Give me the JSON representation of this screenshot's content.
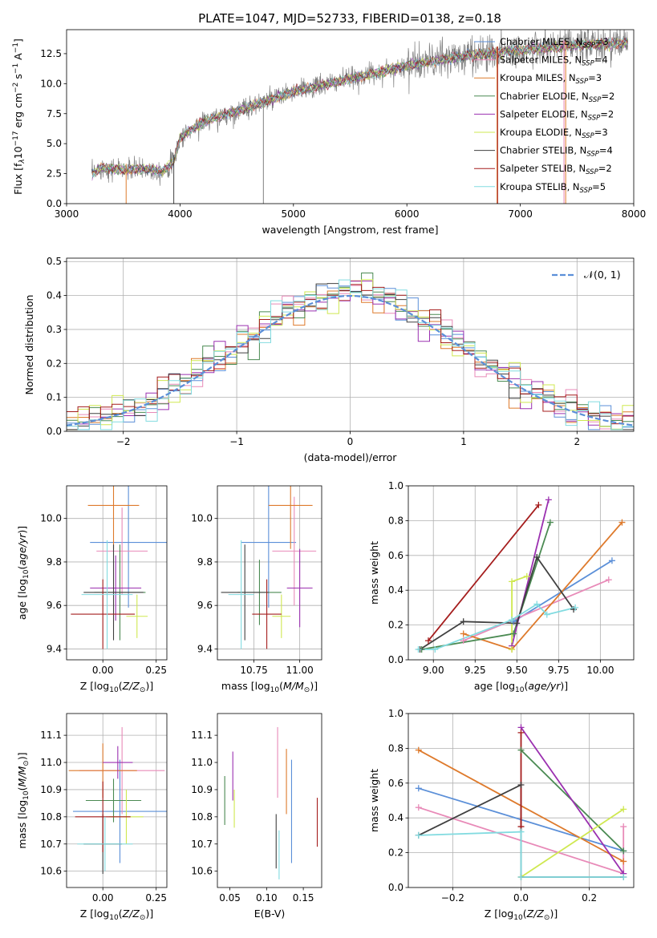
{
  "figure": {
    "title": "PLATE=1047, MJD=52733, FIBERID=0138, z=0.18"
  },
  "colors": {
    "data": "#808080",
    "chabrier_miles": "#5b8fd8",
    "salpeter_miles": "#e88ab8",
    "kroupa_miles": "#de7a2c",
    "chabrier_elodie": "#4a8a52",
    "salpeter_elodie": "#9b30b0",
    "kroupa_elodie": "#cfe850",
    "chabrier_stelib": "#404040",
    "salpeter_stelib": "#a51d1d",
    "kroupa_stelib": "#82dbe0",
    "normal_curve": "#5b8fd8"
  },
  "chart_data": [
    {
      "id": "spectrum",
      "type": "line",
      "xlabel": "wavelength [Angstrom, rest frame]",
      "ylabel": "Flux [f",
      "xlim": [
        3000,
        8000
      ],
      "ylim": [
        0,
        14.5
      ],
      "xticks": [
        "3000",
        "4000",
        "5000",
        "6000",
        "7000",
        "8000"
      ],
      "yticks": [
        "0.0",
        "2.5",
        "5.0",
        "7.5",
        "10.0",
        "12.5"
      ],
      "x_range_data": [
        3220,
        7950
      ],
      "shape_points": [
        [
          3220,
          2.4
        ],
        [
          3300,
          3.0
        ],
        [
          3500,
          2.8
        ],
        [
          3700,
          2.9
        ],
        [
          3850,
          2.7
        ],
        [
          3950,
          3.6
        ],
        [
          4000,
          5.5
        ],
        [
          4200,
          6.8
        ],
        [
          4500,
          7.7
        ],
        [
          5000,
          9.3
        ],
        [
          5500,
          10.4
        ],
        [
          6000,
          11.5
        ],
        [
          6500,
          12.3
        ],
        [
          7000,
          12.8
        ],
        [
          7500,
          13.2
        ],
        [
          7950,
          13.4
        ]
      ],
      "legend": [
        {
          "key": "chabrier_miles",
          "text": "Chabrier MILES, N",
          "sub": "SSP",
          "val": "=3"
        },
        {
          "key": "salpeter_miles",
          "text": "Salpeter MILES, N",
          "sub": "SSP",
          "val": "=4"
        },
        {
          "key": "kroupa_miles",
          "text": "Kroupa MILES, N",
          "sub": "SSP",
          "val": "=3"
        },
        {
          "key": "chabrier_elodie",
          "text": "Chabrier ELODIE, N",
          "sub": "SSP",
          "val": "=2"
        },
        {
          "key": "salpeter_elodie",
          "text": "Salpeter ELODIE, N",
          "sub": "SSP",
          "val": "=2"
        },
        {
          "key": "kroupa_elodie",
          "text": "Kroupa ELODIE, N",
          "sub": "SSP",
          "val": "=3"
        },
        {
          "key": "chabrier_stelib",
          "text": "Chabrier STELIB, N",
          "sub": "SSP",
          "val": "=4"
        },
        {
          "key": "salpeter_stelib",
          "text": "Salpeter STELIB, N",
          "sub": "SSP",
          "val": "=2"
        },
        {
          "key": "kroupa_stelib",
          "text": "Kroupa STELIB, N",
          "sub": "SSP",
          "val": "=5"
        }
      ]
    },
    {
      "id": "residuals",
      "type": "step",
      "xlabel": "(data-model)/error",
      "ylabel": "Normed distribution",
      "xlim": [
        -2.5,
        2.5
      ],
      "ylim": [
        0,
        0.51
      ],
      "xticks": [
        "-2",
        "-1",
        "0",
        "1",
        "2"
      ],
      "ytick_values": [
        0,
        0.1,
        0.2,
        0.3,
        0.4,
        0.5
      ],
      "yticks": [
        "0.0",
        "0.1",
        "0.2",
        "0.3",
        "0.4",
        "0.5"
      ],
      "legend": "𝒩(0, 1)",
      "bin_width": 0.1
    },
    {
      "id": "age_vs_Z",
      "type": "errorbar",
      "xlabel": "Z [log",
      "ylabel": "age  [log",
      "xlim": [
        -0.17,
        0.3
      ],
      "ylim": [
        9.35,
        10.15
      ],
      "xticks": [
        "0.00",
        "0.25"
      ],
      "yticks": [
        "9.4",
        "9.6",
        "9.8",
        "10.0"
      ],
      "points": [
        {
          "key": "chabrier_miles",
          "x": 0.12,
          "xerr": 0.18,
          "y": 9.89,
          "yerr": 0.3
        },
        {
          "key": "salpeter_miles",
          "x": 0.09,
          "xerr": 0.12,
          "y": 9.85,
          "yerr": 0.2
        },
        {
          "key": "kroupa_miles",
          "x": 0.05,
          "xerr": 0.12,
          "y": 10.06,
          "yerr": 0.2
        },
        {
          "key": "chabrier_elodie",
          "x": 0.08,
          "xerr": 0.12,
          "y": 9.66,
          "yerr": 0.22
        },
        {
          "key": "salpeter_elodie",
          "x": 0.06,
          "xerr": 0.12,
          "y": 9.68,
          "yerr": 0.15
        },
        {
          "key": "kroupa_elodie",
          "x": 0.16,
          "xerr": 0.05,
          "y": 9.55,
          "yerr": 0.1
        },
        {
          "key": "chabrier_stelib",
          "x": 0.05,
          "xerr": 0.14,
          "y": 9.66,
          "yerr": 0.22
        },
        {
          "key": "salpeter_stelib",
          "x": 0.0,
          "xerr": 0.15,
          "y": 9.56,
          "yerr": 0.16
        },
        {
          "key": "kroupa_stelib",
          "x": 0.02,
          "xerr": 0.12,
          "y": 9.65,
          "yerr": 0.25
        }
      ]
    },
    {
      "id": "age_vs_mass",
      "type": "errorbar",
      "xlabel": "mass [log",
      "ylabel": "",
      "xlim": [
        10.55,
        11.12
      ],
      "ylim": [
        9.35,
        10.15
      ],
      "xticks": [
        "10.75",
        "11.00"
      ],
      "yticks": [
        "9.4",
        "9.6",
        "9.8",
        "10.0"
      ],
      "points": [
        {
          "key": "chabrier_miles",
          "x": 10.83,
          "xerr": 0.15,
          "y": 9.89,
          "yerr": 0.3
        },
        {
          "key": "salpeter_miles",
          "x": 10.97,
          "xerr": 0.12,
          "y": 9.85,
          "yerr": 0.25
        },
        {
          "key": "kroupa_miles",
          "x": 10.95,
          "xerr": 0.12,
          "y": 10.06,
          "yerr": 0.2
        },
        {
          "key": "chabrier_elodie",
          "x": 10.78,
          "xerr": 0.12,
          "y": 9.66,
          "yerr": 0.15
        },
        {
          "key": "salpeter_elodie",
          "x": 11.0,
          "xerr": 0.07,
          "y": 9.68,
          "yerr": 0.18
        },
        {
          "key": "kroupa_elodie",
          "x": 10.9,
          "xerr": 0.05,
          "y": 9.55,
          "yerr": 0.1
        },
        {
          "key": "chabrier_stelib",
          "x": 10.7,
          "xerr": 0.13,
          "y": 9.66,
          "yerr": 0.22
        },
        {
          "key": "salpeter_stelib",
          "x": 10.82,
          "xerr": 0.08,
          "y": 9.56,
          "yerr": 0.16
        },
        {
          "key": "kroupa_stelib",
          "x": 10.68,
          "xerr": 0.07,
          "y": 9.65,
          "yerr": 0.25
        }
      ]
    },
    {
      "id": "weight_vs_age",
      "type": "line",
      "xlabel": "age  [log",
      "ylabel": "mass weight",
      "xlim": [
        8.85,
        10.2
      ],
      "ylim": [
        0,
        1.0
      ],
      "xticks": [
        "9.00",
        "9.25",
        "9.50",
        "9.75",
        "10.00"
      ],
      "ytick_values": [
        0,
        0.2,
        0.4,
        0.6,
        0.8,
        1.0
      ],
      "yticks": [
        "0.0",
        "0.2",
        "0.4",
        "0.6",
        "0.8",
        "1.0"
      ],
      "series": [
        {
          "key": "chabrier_miles",
          "x": [
            9.48,
            10.07
          ],
          "y": [
            0.22,
            0.57
          ]
        },
        {
          "key": "salpeter_miles",
          "x": [
            9.18,
            10.05
          ],
          "y": [
            0.11,
            0.46
          ]
        },
        {
          "key": "kroupa_miles",
          "x": [
            9.18,
            9.47,
            10.13
          ],
          "y": [
            0.15,
            0.06,
            0.79
          ]
        },
        {
          "key": "chabrier_elodie",
          "x": [
            8.93,
            9.48,
            9.7
          ],
          "y": [
            0.06,
            0.15,
            0.79
          ]
        },
        {
          "key": "salpeter_elodie",
          "x": [
            9.47,
            9.69
          ],
          "y": [
            0.08,
            0.92
          ]
        },
        {
          "key": "kroupa_elodie",
          "x": [
            9.47,
            9.47,
            9.56
          ],
          "y": [
            0.06,
            0.45,
            0.48
          ]
        },
        {
          "key": "chabrier_stelib",
          "x": [
            8.92,
            9.18,
            9.5,
            9.62,
            9.84
          ],
          "y": [
            0.06,
            0.22,
            0.21,
            0.59,
            0.29
          ]
        },
        {
          "key": "salpeter_stelib",
          "x": [
            8.97,
            9.63
          ],
          "y": [
            0.11,
            0.89
          ]
        },
        {
          "key": "kroupa_stelib",
          "x": [
            8.91,
            9.01,
            9.47,
            9.62,
            9.68,
            9.85
          ],
          "y": [
            0.06,
            0.06,
            0.23,
            0.32,
            0.26,
            0.3
          ]
        }
      ]
    },
    {
      "id": "mass_vs_Z",
      "type": "errorbar",
      "xlabel": "Z [log",
      "ylabel": "mass [log",
      "xlim": [
        -0.17,
        0.3
      ],
      "ylim": [
        10.54,
        11.18
      ],
      "xticks": [
        "0.00",
        "0.25"
      ],
      "yticks": [
        "10.6",
        "10.7",
        "10.8",
        "10.9",
        "11.0",
        "11.1"
      ],
      "points": [
        {
          "key": "chabrier_miles",
          "x": 0.08,
          "xerr": 0.22,
          "y": 10.82,
          "yerr": 0.19
        },
        {
          "key": "salpeter_miles",
          "x": 0.09,
          "xerr": 0.2,
          "y": 10.97,
          "yerr": 0.16
        },
        {
          "key": "kroupa_miles",
          "x": 0.0,
          "xerr": 0.16,
          "y": 10.97,
          "yerr": 0.1
        },
        {
          "key": "chabrier_elodie",
          "x": 0.05,
          "xerr": 0.13,
          "y": 10.86,
          "yerr": 0.08
        },
        {
          "key": "salpeter_elodie",
          "x": 0.07,
          "xerr": 0.07,
          "y": 11.0,
          "yerr": 0.06
        },
        {
          "key": "kroupa_elodie",
          "x": 0.11,
          "xerr": 0.08,
          "y": 10.8,
          "yerr": 0.1
        },
        {
          "key": "chabrier_stelib",
          "x": 0.0,
          "xerr": 0.09,
          "y": 10.7,
          "yerr": 0.11
        },
        {
          "key": "salpeter_stelib",
          "x": 0.0,
          "xerr": 0.13,
          "y": 10.8,
          "yerr": 0.13
        },
        {
          "key": "kroupa_stelib",
          "x": 0.01,
          "xerr": 0.13,
          "y": 10.7,
          "yerr": 0.1
        }
      ]
    },
    {
      "id": "mass_vs_EBV",
      "type": "errorbar",
      "xlabel": "E(B-V)",
      "ylabel": "",
      "xlim": [
        0.033,
        0.175
      ],
      "ylim": [
        10.54,
        11.18
      ],
      "xticks": [
        "0.05",
        "0.10",
        "0.15"
      ],
      "yticks": [
        "10.6",
        "10.7",
        "10.8",
        "10.9",
        "11.0",
        "11.1"
      ],
      "points": [
        {
          "key": "chabrier_miles",
          "x": 0.134,
          "xerr": 0,
          "y": 10.82,
          "yerr": 0.19
        },
        {
          "key": "salpeter_miles",
          "x": 0.115,
          "xerr": 0,
          "y": 11.0,
          "yerr": 0.13
        },
        {
          "key": "kroupa_miles",
          "x": 0.127,
          "xerr": 0,
          "y": 10.93,
          "yerr": 0.12
        },
        {
          "key": "chabrier_elodie",
          "x": 0.043,
          "xerr": 0,
          "y": 10.86,
          "yerr": 0.09
        },
        {
          "key": "salpeter_elodie",
          "x": 0.054,
          "xerr": 0,
          "y": 10.95,
          "yerr": 0.09
        },
        {
          "key": "kroupa_elodie",
          "x": 0.056,
          "xerr": 0,
          "y": 10.83,
          "yerr": 0.07
        },
        {
          "key": "chabrier_stelib",
          "x": 0.113,
          "xerr": 0,
          "y": 10.71,
          "yerr": 0.1
        },
        {
          "key": "salpeter_stelib",
          "x": 0.169,
          "xerr": 0,
          "y": 10.78,
          "yerr": 0.09
        },
        {
          "key": "kroupa_stelib",
          "x": 0.117,
          "xerr": 0,
          "y": 10.66,
          "yerr": 0.09
        }
      ]
    },
    {
      "id": "weight_vs_Z",
      "type": "line",
      "xlabel": "Z [log",
      "ylabel": "mass weight",
      "xlim": [
        -0.33,
        0.33
      ],
      "ylim": [
        0,
        1.0
      ],
      "xticks": [
        "-0.2",
        "0.0",
        "0.2"
      ],
      "xtick_values": [
        -0.2,
        0.0,
        0.2
      ],
      "ytick_values": [
        0,
        0.2,
        0.4,
        0.6,
        0.8,
        1.0
      ],
      "yticks": [
        "0.0",
        "0.2",
        "0.4",
        "0.6",
        "0.8",
        "1.0"
      ],
      "series": [
        {
          "key": "chabrier_miles",
          "x": [
            -0.3,
            0.3
          ],
          "y": [
            0.57,
            0.21
          ]
        },
        {
          "key": "salpeter_miles",
          "x": [
            -0.3,
            0.3,
            0.3
          ],
          "y": [
            0.46,
            0.08,
            0.35
          ]
        },
        {
          "key": "kroupa_miles",
          "x": [
            -0.3,
            0.3
          ],
          "y": [
            0.79,
            0.15
          ]
        },
        {
          "key": "chabrier_elodie",
          "x": [
            0.0,
            0.3
          ],
          "y": [
            0.79,
            0.21
          ]
        },
        {
          "key": "salpeter_elodie",
          "x": [
            0.0,
            0.3
          ],
          "y": [
            0.92,
            0.08
          ]
        },
        {
          "key": "kroupa_elodie",
          "x": [
            0.0,
            0.3
          ],
          "y": [
            0.06,
            0.45
          ]
        },
        {
          "key": "chabrier_stelib",
          "x": [
            -0.3,
            0.0,
            0.0,
            0.3
          ],
          "y": [
            0.3,
            0.59,
            0.06,
            0.06
          ]
        },
        {
          "key": "salpeter_stelib",
          "x": [
            0.0,
            0.0
          ],
          "y": [
            0.35,
            0.89
          ]
        },
        {
          "key": "kroupa_stelib",
          "x": [
            -0.3,
            0.0,
            0.0,
            0.3
          ],
          "y": [
            0.3,
            0.32,
            0.06,
            0.06
          ]
        }
      ]
    }
  ]
}
